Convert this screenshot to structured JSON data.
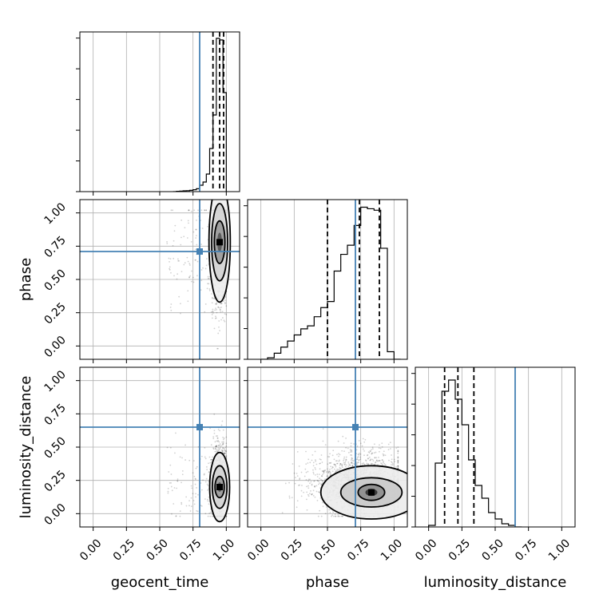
{
  "chart_data": {
    "type": "corner",
    "parameters": [
      "geocent_time",
      "phase",
      "luminosity_distance"
    ],
    "axis_range": [
      -0.1,
      1.1
    ],
    "tick_labels": [
      "0.00",
      "0.25",
      "0.50",
      "0.75",
      "1.00"
    ],
    "tick_values": [
      0,
      0.25,
      0.5,
      0.75,
      1.0
    ],
    "grid": true,
    "truths": {
      "geocent_time": 0.8,
      "phase": 0.71,
      "luminosity_distance": 0.65
    },
    "truth_color": "#4682b4",
    "quantiles": {
      "geocent_time": [
        0.9,
        0.95,
        0.98
      ],
      "phase": [
        0.5,
        0.74,
        0.89
      ],
      "luminosity_distance": [
        0.12,
        0.22,
        0.34
      ]
    },
    "histograms": {
      "geocent_time": {
        "bin_edges": [
          0.6,
          0.625,
          0.65,
          0.675,
          0.7,
          0.725,
          0.75,
          0.775,
          0.8,
          0.825,
          0.85,
          0.875,
          0.9,
          0.925,
          0.95,
          0.975,
          1.0
        ],
        "counts": [
          0,
          2,
          3,
          5,
          6,
          8,
          12,
          18,
          40,
          60,
          110,
          270,
          480,
          960,
          950,
          620
        ],
        "max": 1000
      },
      "phase": {
        "bin_edges": [
          0.0,
          0.05,
          0.1,
          0.15,
          0.2,
          0.25,
          0.3,
          0.35,
          0.4,
          0.45,
          0.5,
          0.55,
          0.6,
          0.65,
          0.7,
          0.75,
          0.8,
          0.85,
          0.9,
          0.95,
          1.0,
          1.05
        ],
        "counts": [
          0,
          1,
          4,
          8,
          12,
          16,
          20,
          22,
          28,
          34,
          38,
          58,
          69,
          75,
          88,
          100,
          99,
          98,
          73,
          5,
          0
        ],
        "max": 105
      },
      "luminosity_distance": {
        "bin_edges": [
          0.0,
          0.05,
          0.1,
          0.15,
          0.2,
          0.25,
          0.3,
          0.35,
          0.4,
          0.45,
          0.5,
          0.55,
          0.6,
          0.65,
          0.7
        ],
        "counts": [
          1,
          40,
          85,
          92,
          80,
          64,
          42,
          26,
          18,
          9,
          5,
          2,
          1,
          0
        ],
        "max": 100
      }
    },
    "contours": {
      "phase_vs_geocent_time": {
        "center": [
          0.95,
          0.78
        ],
        "levels": [
          {
            "rx": 0.04,
            "ry": 0.16
          },
          {
            "rx": 0.06,
            "ry": 0.29
          },
          {
            "rx": 0.08,
            "ry": 0.45
          }
        ],
        "fill_levels": [
          "#5c5c5c",
          "#9a9a9a",
          "#d3d3d3",
          "#eeeeee"
        ]
      },
      "luminosity_distance_vs_geocent_time": {
        "center": [
          0.95,
          0.2
        ],
        "levels": [
          {
            "rx": 0.035,
            "ry": 0.08
          },
          {
            "rx": 0.055,
            "ry": 0.16
          },
          {
            "rx": 0.075,
            "ry": 0.26
          }
        ],
        "fill_levels": [
          "#5c5c5c",
          "#9a9a9a",
          "#d3d3d3",
          "#eeeeee"
        ]
      },
      "luminosity_distance_vs_phase": {
        "center": [
          0.83,
          0.16
        ],
        "levels": [
          {
            "rx": 0.1,
            "ry": 0.06
          },
          {
            "rx": 0.23,
            "ry": 0.11
          },
          {
            "rx": 0.38,
            "ry": 0.2
          }
        ],
        "fill_levels": [
          "#3a3a3a",
          "#8c8c8c",
          "#c9c9c9",
          "#ececec"
        ]
      }
    }
  }
}
